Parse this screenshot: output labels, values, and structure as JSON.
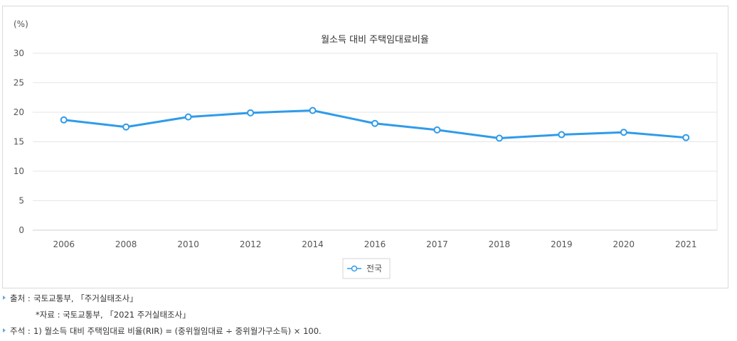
{
  "chart_data": {
    "type": "line",
    "title": "월소득 대비 주택임대료비율",
    "ylabel": "(%)",
    "xlabel": "",
    "categories": [
      "2006",
      "2008",
      "2010",
      "2012",
      "2014",
      "2016",
      "2017",
      "2018",
      "2019",
      "2020",
      "2021"
    ],
    "series": [
      {
        "name": "전국",
        "values": [
          18.7,
          17.5,
          19.2,
          19.9,
          20.3,
          18.1,
          17.0,
          15.6,
          16.2,
          16.6,
          15.7
        ]
      }
    ],
    "ylim": [
      0,
      30
    ],
    "yticks": [
      "0",
      "5",
      "10",
      "15",
      "20",
      "25",
      "30"
    ],
    "grid": true,
    "legend_position": "bottom-center",
    "colors": {
      "line": "#2f9bea",
      "marker_fill": "#ffffff",
      "grid": "#e6e6e6"
    }
  },
  "notes": {
    "source_label": "출처 :",
    "source_text": "국토교통부, 「주거실태조사」",
    "data_note": "*자료 : 국토교통부, 「2021 주거실태조사」",
    "remark_label": "주석 :",
    "remark_text": "1) 월소득 대비 주택임대료 비율(RIR) = (중위월임대료 ÷ 중위월가구소득) × 100."
  }
}
